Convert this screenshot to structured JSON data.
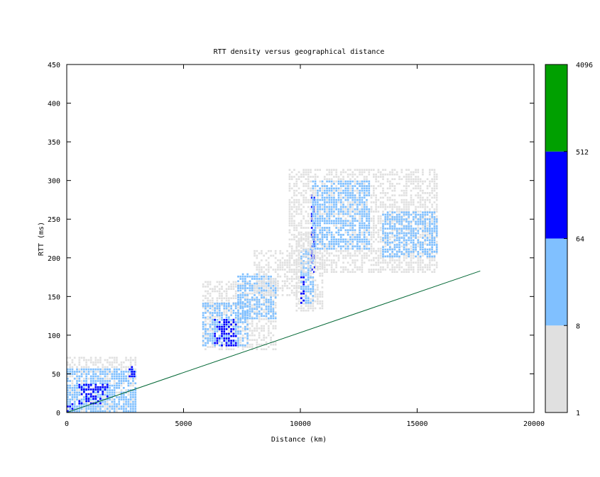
{
  "chart_data": {
    "type": "heatmap",
    "title": "RTT density versus geographical distance",
    "xlabel": "Distance (km)",
    "ylabel": "RTT (ms)",
    "xlim": [
      0,
      20000
    ],
    "ylim": [
      0,
      450
    ],
    "x_ticks": [
      "0",
      "5000",
      "10000",
      "15000",
      "20000"
    ],
    "y_ticks": [
      "0",
      "50",
      "100",
      "150",
      "200",
      "250",
      "300",
      "350",
      "400",
      "450"
    ],
    "colorbar": {
      "scale": "log",
      "ticks": [
        "1",
        "8",
        "64",
        "512",
        "4096"
      ],
      "bands": [
        {
          "from": 1,
          "to": 8,
          "color": "#e0e0e0"
        },
        {
          "from": 8,
          "to": 64,
          "color": "#80c0ff"
        },
        {
          "from": 64,
          "to": 512,
          "color": "#0000ff"
        },
        {
          "from": 512,
          "to": 4096,
          "color": "#00a000"
        }
      ]
    },
    "cell_size": {
      "km": 100,
      "ms": 3
    },
    "density_regions": [
      {
        "x": [
          0,
          2950
        ],
        "y": [
          0,
          70
        ],
        "level": 1
      },
      {
        "x": [
          0,
          2950
        ],
        "y": [
          0,
          55
        ],
        "level": 2
      },
      {
        "x": [
          500,
          1800
        ],
        "y": [
          10,
          35
        ],
        "level": 3
      },
      {
        "x": [
          0,
          300
        ],
        "y": [
          0,
          10
        ],
        "level": 3
      },
      {
        "x": [
          2650,
          2950
        ],
        "y": [
          45,
          60
        ],
        "level": 3
      },
      {
        "x": [
          5800,
          9000
        ],
        "y": [
          80,
          170
        ],
        "level": 1
      },
      {
        "x": [
          5800,
          7800
        ],
        "y": [
          85,
          140
        ],
        "level": 2
      },
      {
        "x": [
          6300,
          7300
        ],
        "y": [
          85,
          120
        ],
        "level": 3
      },
      {
        "x": [
          7300,
          9000
        ],
        "y": [
          120,
          180
        ],
        "level": 2
      },
      {
        "x": [
          8000,
          10000
        ],
        "y": [
          150,
          210
        ],
        "level": 1
      },
      {
        "x": [
          9800,
          11000
        ],
        "y": [
          130,
          230
        ],
        "level": 1
      },
      {
        "x": [
          10000,
          10600
        ],
        "y": [
          140,
          210
        ],
        "level": 2
      },
      {
        "x": [
          10000,
          10200
        ],
        "y": [
          140,
          175
        ],
        "level": 3
      },
      {
        "x": [
          10450,
          10600
        ],
        "y": [
          180,
          280
        ],
        "level": 3
      },
      {
        "x": [
          9500,
          15900
        ],
        "y": [
          180,
          315
        ],
        "level": 1
      },
      {
        "x": [
          10500,
          13000
        ],
        "y": [
          210,
          300
        ],
        "level": 2
      },
      {
        "x": [
          13500,
          15900
        ],
        "y": [
          200,
          260
        ],
        "level": 2
      }
    ],
    "reference_line": {
      "x": [
        0,
        17700
      ],
      "y": [
        0,
        183
      ],
      "color": "#006633"
    }
  }
}
